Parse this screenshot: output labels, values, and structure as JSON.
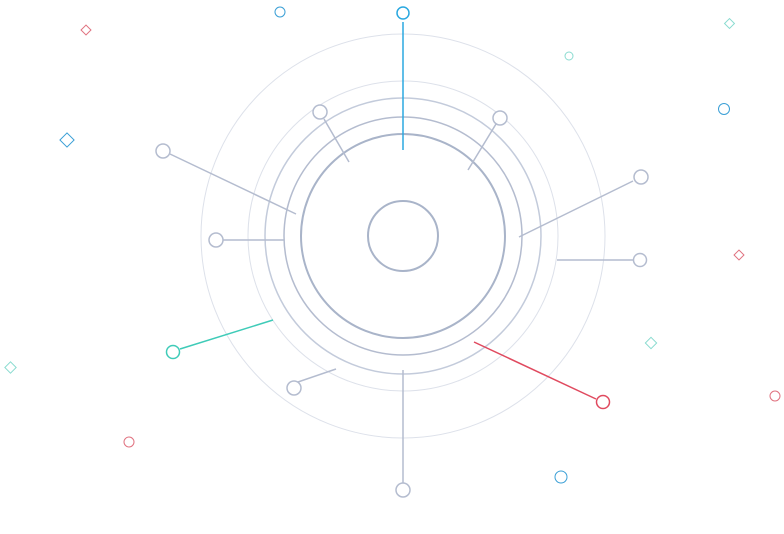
{
  "colors": {
    "background": "#ffffff",
    "ring_light": "#dde1ea",
    "ring_mid": "#c3cbdb",
    "ring_dark": "#a9b4c9",
    "spoke": "#b4bccf",
    "accent_blue": "#2aa8e0",
    "accent_teal": "#3fcbb8",
    "accent_red": "#e04a5f",
    "decor_blue": "#3a9fd6",
    "decor_teal": "#8adbd0",
    "decor_red": "#e0717f"
  },
  "diagram": {
    "name": "radial-network-diagram",
    "spokes": [
      {
        "name": "spoke-top",
        "color": "accent_blue"
      },
      {
        "name": "spoke-upper-left",
        "color": "spoke"
      },
      {
        "name": "spoke-upper-right",
        "color": "spoke"
      },
      {
        "name": "spoke-left-high",
        "color": "spoke"
      },
      {
        "name": "spoke-right-high",
        "color": "spoke"
      },
      {
        "name": "spoke-left",
        "color": "spoke"
      },
      {
        "name": "spoke-right",
        "color": "spoke"
      },
      {
        "name": "spoke-left-low",
        "color": "accent_teal"
      },
      {
        "name": "spoke-lower-left",
        "color": "spoke"
      },
      {
        "name": "spoke-bottom",
        "color": "spoke"
      },
      {
        "name": "spoke-lower-right",
        "color": "accent_red"
      }
    ]
  }
}
